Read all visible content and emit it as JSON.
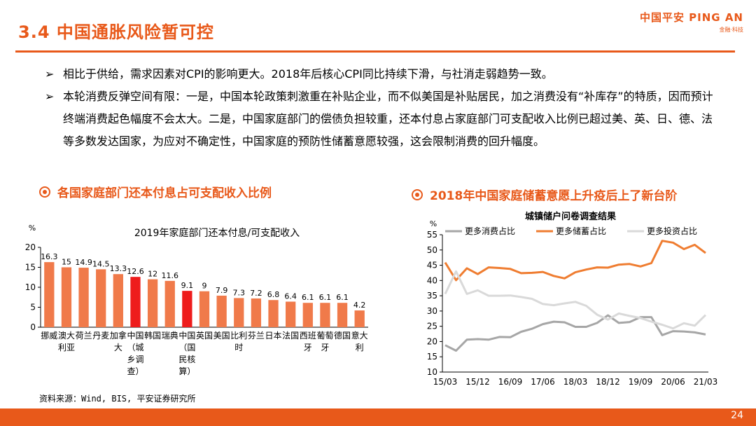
{
  "slide": {
    "title": "3.4 中国通胀风险暂可控",
    "logo_main": "中国平安 PING AN",
    "logo_sub": "金融·科技",
    "page_number": "24",
    "source": "资料来源：Wind, BIS, 平安证券研究所"
  },
  "bullets": [
    {
      "marker": "➢",
      "text": "相比于供给，需求因素对CPI的影响更大。2018年后核心CPI同比持续下滑，与社消走弱趋势一致。"
    },
    {
      "marker": "➢",
      "text": "本轮消费反弹空间有限：一是，中国本轮政策刺激重在补贴企业，而不似美国是补贴居民，加之消费没有“补库存”的特质，因而预计终端消费起色幅度不会太大。二是，中国家庭部门的偿债负担较重，还本付息占家庭部门可支配收入比例已超过美、英、日、德、法等多数发达国家，为应对不确定性，中国家庭的预防性储蓄意愿较强，这会限制消费的回升幅度。"
    }
  ],
  "left_section_title": "各国家庭部门还本付息占可支配收入比例",
  "right_section_title": "2018年中国家庭储蓄意愿上升疫后上了新台阶",
  "colors": {
    "accent": "#e8591a",
    "bar": "#f07a4a",
    "bar_highlight": "#ee1c1c",
    "line_consume": "#a6a6a6",
    "line_save": "#ef7d31",
    "line_invest": "#d9d9d9"
  },
  "chart_data": [
    {
      "type": "bar",
      "title": "2019年家庭部门还本付息/可支配收入",
      "ylabel": "%",
      "ylim": [
        0,
        20
      ],
      "yticks": [
        0,
        5,
        10,
        15,
        20
      ],
      "categories": [
        "挪威",
        "澳大利亚",
        "荷兰",
        "丹麦",
        "加拿大",
        "中国(城乡调查)",
        "韩国",
        "瑞典",
        "中国(国民核算)",
        "英国",
        "美国",
        "比利时",
        "芬兰",
        "日本",
        "法国",
        "西班牙",
        "葡萄牙",
        "德国",
        "意大利"
      ],
      "category_lines": [
        [
          "挪威"
        ],
        [
          "澳大",
          "利亚"
        ],
        [
          "荷兰"
        ],
        [
          "丹麦"
        ],
        [
          "加拿",
          "大"
        ],
        [
          "中国",
          "（城",
          "乡调",
          "查）"
        ],
        [
          "韩国"
        ],
        [
          "瑞典"
        ],
        [
          "中国",
          "（国",
          "民核",
          "算）"
        ],
        [
          "英国"
        ],
        [
          "美国"
        ],
        [
          "比利",
          "时"
        ],
        [
          "芬兰"
        ],
        [
          "日本"
        ],
        [
          "法国"
        ],
        [
          "西班",
          "牙"
        ],
        [
          "葡萄",
          "牙"
        ],
        [
          "德国"
        ],
        [
          "意大",
          "利"
        ]
      ],
      "values": [
        16.3,
        15,
        14.9,
        14.5,
        13.3,
        12.6,
        12,
        11.6,
        9.1,
        9,
        7.9,
        7.3,
        7.2,
        6.8,
        6.4,
        6.1,
        6.1,
        6.1,
        4.2
      ],
      "labels": [
        "16.3",
        "15",
        "14.9",
        "14.5",
        "13.3",
        "12.6",
        "12",
        "11.6",
        "9.1",
        "9",
        "7.9",
        "7.3",
        "7.2",
        "6.8",
        "6.4",
        "6.1",
        "6.1",
        "6.1",
        "4.2"
      ],
      "highlight_indices": [
        5,
        8
      ]
    },
    {
      "type": "line",
      "title": "城镇储户问卷调查结果",
      "ylabel": "%",
      "ylim": [
        10,
        55
      ],
      "yticks": [
        10,
        15,
        20,
        25,
        30,
        35,
        40,
        45,
        50,
        55
      ],
      "x": [
        "15/03",
        "15/06",
        "15/09",
        "15/12",
        "16/03",
        "16/06",
        "16/09",
        "16/12",
        "17/03",
        "17/06",
        "17/09",
        "17/12",
        "18/03",
        "18/06",
        "18/09",
        "18/12",
        "19/03",
        "19/06",
        "19/09",
        "19/12",
        "20/03",
        "20/06",
        "20/09",
        "20/12",
        "21/03"
      ],
      "xticks": [
        "15/03",
        "15/12",
        "16/09",
        "17/06",
        "18/03",
        "18/12",
        "19/09",
        "20/06",
        "21/03"
      ],
      "series": [
        {
          "name": "更多消费占比",
          "color": "#a6a6a6",
          "values": [
            18.8,
            17.0,
            20.6,
            20.8,
            20.6,
            21.5,
            21.4,
            23.2,
            24.2,
            25.7,
            26.5,
            26.3,
            24.8,
            24.8,
            26.1,
            28.6,
            26.1,
            26.4,
            28.0,
            28.0,
            22.1,
            23.4,
            23.3,
            23.0,
            22.3
          ]
        },
        {
          "name": "更多储蓄占比",
          "color": "#ef7d31",
          "values": [
            45.9,
            40.1,
            44.0,
            42.1,
            44.3,
            44.1,
            43.8,
            42.4,
            42.5,
            42.8,
            41.5,
            40.7,
            42.7,
            43.6,
            44.3,
            44.2,
            45.2,
            45.4,
            44.6,
            45.7,
            53.0,
            52.4,
            50.3,
            51.7,
            49.0
          ]
        },
        {
          "name": "更多投资占比",
          "color": "#d9d9d9",
          "values": [
            35.6,
            43.0,
            35.6,
            36.8,
            35.0,
            35.0,
            35.1,
            34.6,
            34.0,
            32.3,
            31.9,
            32.5,
            33.0,
            31.7,
            28.8,
            27.2,
            29.2,
            28.4,
            27.7,
            26.5,
            25.5,
            24.3,
            26.0,
            25.2,
            28.7
          ]
        }
      ]
    }
  ]
}
